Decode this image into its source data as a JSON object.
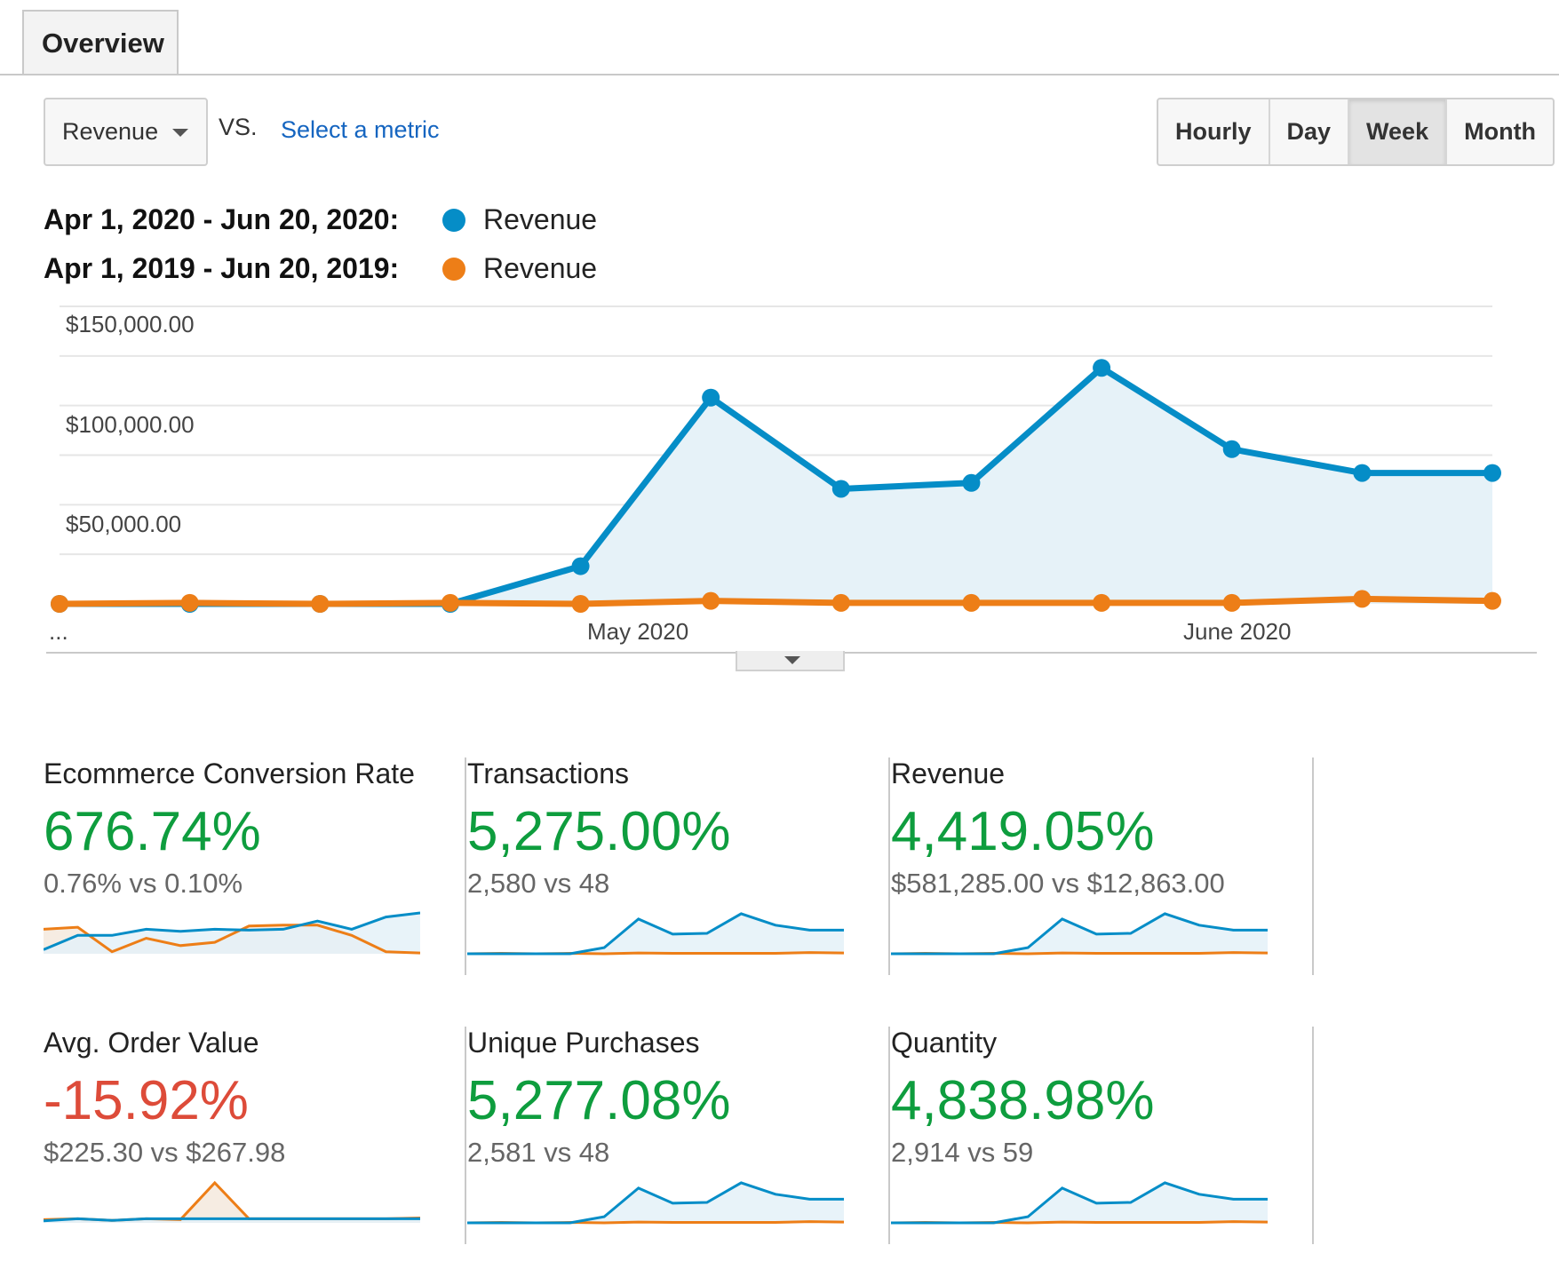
{
  "tab": {
    "label": "Overview"
  },
  "toolbar": {
    "metric": "Revenue",
    "vs_label": "VS.",
    "select_metric": "Select a metric",
    "granularity": [
      "Hourly",
      "Day",
      "Week",
      "Month"
    ],
    "granularity_selected": "Week"
  },
  "legend": [
    {
      "date_range": "Apr 1, 2020 - Jun 20, 2020:",
      "metric": "Revenue",
      "color": "#058dc7"
    },
    {
      "date_range": "Apr 1, 2019 - Jun 20, 2019:",
      "metric": "Revenue",
      "color": "#ed7e17"
    }
  ],
  "chart_data": {
    "type": "area",
    "y_tick_labels": [
      "$150,000.00",
      "$100,000.00",
      "$50,000.00"
    ],
    "ylim": [
      0,
      150000
    ],
    "x_tick_labels": [
      "...",
      "May 2020",
      "June 2020"
    ],
    "grid": true,
    "series": [
      {
        "name": "Apr 1, 2020 - Jun 20, 2020: Revenue",
        "color": "#058dc7",
        "values": [
          0,
          0,
          0,
          0,
          19000,
          104000,
          58000,
          61000,
          119000,
          78000,
          66000,
          66000
        ]
      },
      {
        "name": "Apr 1, 2019 - Jun 20, 2019: Revenue",
        "color": "#ed7e17",
        "values": [
          0,
          500,
          0,
          500,
          0,
          1500,
          500,
          500,
          500,
          500,
          2500,
          1500
        ]
      }
    ]
  },
  "cards": [
    {
      "title": "Ecommerce Conversion Rate",
      "change": "676.74%",
      "change_color": "#0e9d3e",
      "comparison": "0.76% vs 0.10%",
      "spark_current": [
        0.1,
        0.45,
        0.45,
        0.6,
        0.55,
        0.6,
        0.58,
        0.6,
        0.8,
        0.6,
        0.9,
        1.0
      ],
      "spark_previous": [
        0.6,
        0.65,
        0.05,
        0.38,
        0.2,
        0.28,
        0.68,
        0.7,
        0.7,
        0.45,
        0.05,
        0.02
      ]
    },
    {
      "title": "Transactions",
      "change": "5,275.00%",
      "change_color": "#0e9d3e",
      "comparison": "2,580 vs 48",
      "spark_current": [
        0,
        0,
        0,
        0,
        0.15,
        0.85,
        0.48,
        0.5,
        0.98,
        0.7,
        0.58,
        0.58
      ],
      "spark_previous": [
        0,
        0.01,
        0,
        0.01,
        0,
        0.02,
        0.01,
        0.01,
        0.01,
        0.01,
        0.03,
        0.02
      ]
    },
    {
      "title": "Revenue",
      "change": "4,419.05%",
      "change_color": "#0e9d3e",
      "comparison": "$581,285.00 vs $12,863.00",
      "spark_current": [
        0,
        0,
        0,
        0,
        0.15,
        0.85,
        0.48,
        0.5,
        0.98,
        0.7,
        0.58,
        0.58
      ],
      "spark_previous": [
        0,
        0.01,
        0,
        0.01,
        0,
        0.02,
        0.01,
        0.01,
        0.01,
        0.01,
        0.03,
        0.02
      ]
    },
    {
      "title": "Avg. Order Value",
      "change": "-15.92%",
      "change_color": "#dd4b39",
      "comparison": "$225.30 vs $267.98",
      "spark_current": [
        0.05,
        0.1,
        0.06,
        0.1,
        0.1,
        0.1,
        0.1,
        0.1,
        0.1,
        0.1,
        0.1,
        0.1
      ],
      "spark_previous": [
        0.08,
        0.1,
        0.06,
        0.1,
        0.08,
        0.98,
        0.1,
        0.1,
        0.1,
        0.1,
        0.1,
        0.12
      ]
    },
    {
      "title": "Unique Purchases",
      "change": "5,277.08%",
      "change_color": "#0e9d3e",
      "comparison": "2,581 vs 48",
      "spark_current": [
        0,
        0,
        0,
        0,
        0.15,
        0.85,
        0.48,
        0.5,
        0.98,
        0.7,
        0.58,
        0.58
      ],
      "spark_previous": [
        0,
        0.01,
        0,
        0.01,
        0,
        0.02,
        0.01,
        0.01,
        0.01,
        0.01,
        0.03,
        0.02
      ]
    },
    {
      "title": "Quantity",
      "change": "4,838.98%",
      "change_color": "#0e9d3e",
      "comparison": "2,914 vs 59",
      "spark_current": [
        0,
        0,
        0,
        0,
        0.15,
        0.85,
        0.48,
        0.5,
        0.98,
        0.7,
        0.58,
        0.58
      ],
      "spark_previous": [
        0,
        0.01,
        0,
        0.01,
        0,
        0.02,
        0.01,
        0.01,
        0.01,
        0.01,
        0.03,
        0.02
      ]
    }
  ]
}
